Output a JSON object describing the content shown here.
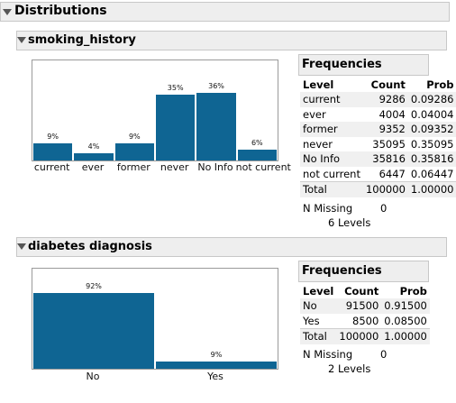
{
  "window": {
    "title": "Distributions"
  },
  "sections": [
    {
      "title": "smoking_history",
      "chart_data": {
        "type": "bar",
        "categories": [
          "current",
          "ever",
          "former",
          "never",
          "No Info",
          "not current"
        ],
        "values": [
          9,
          4,
          9,
          35,
          36,
          6
        ],
        "labels": [
          "9%",
          "4%",
          "9%",
          "35%",
          "36%",
          "6%"
        ],
        "ylim": [
          0,
          40
        ],
        "grid": false,
        "color": "#0f6593"
      },
      "frequencies": {
        "header": "Frequencies",
        "columns": [
          "Level",
          "Count",
          "Prob"
        ],
        "rows": [
          [
            "current",
            "9286",
            "0.09286"
          ],
          [
            "ever",
            "4004",
            "0.04004"
          ],
          [
            "former",
            "9352",
            "0.09352"
          ],
          [
            "never",
            "35095",
            "0.35095"
          ],
          [
            "No Info",
            "35816",
            "0.35816"
          ],
          [
            "not current",
            "6447",
            "0.06447"
          ],
          [
            "Total",
            "100000",
            "1.00000"
          ]
        ],
        "n_missing_label": "N Missing",
        "n_missing_value": "0",
        "levels_text": "6  Levels"
      }
    },
    {
      "title": "diabetes diagnosis",
      "chart_data": {
        "type": "bar",
        "categories": [
          "No",
          "Yes"
        ],
        "values": [
          92,
          9
        ],
        "labels": [
          "92%",
          "9%"
        ],
        "ylim": [
          0,
          100
        ],
        "grid": false,
        "color": "#0f6593"
      },
      "frequencies": {
        "header": "Frequencies",
        "columns": [
          "Level",
          "Count",
          "Prob"
        ],
        "rows": [
          [
            "No",
            "91500",
            "0.91500"
          ],
          [
            "Yes",
            "8500",
            "0.08500"
          ],
          [
            "Total",
            "100000",
            "1.00000"
          ]
        ],
        "n_missing_label": "N Missing",
        "n_missing_value": "0",
        "levels_text": "2  Levels"
      }
    }
  ]
}
